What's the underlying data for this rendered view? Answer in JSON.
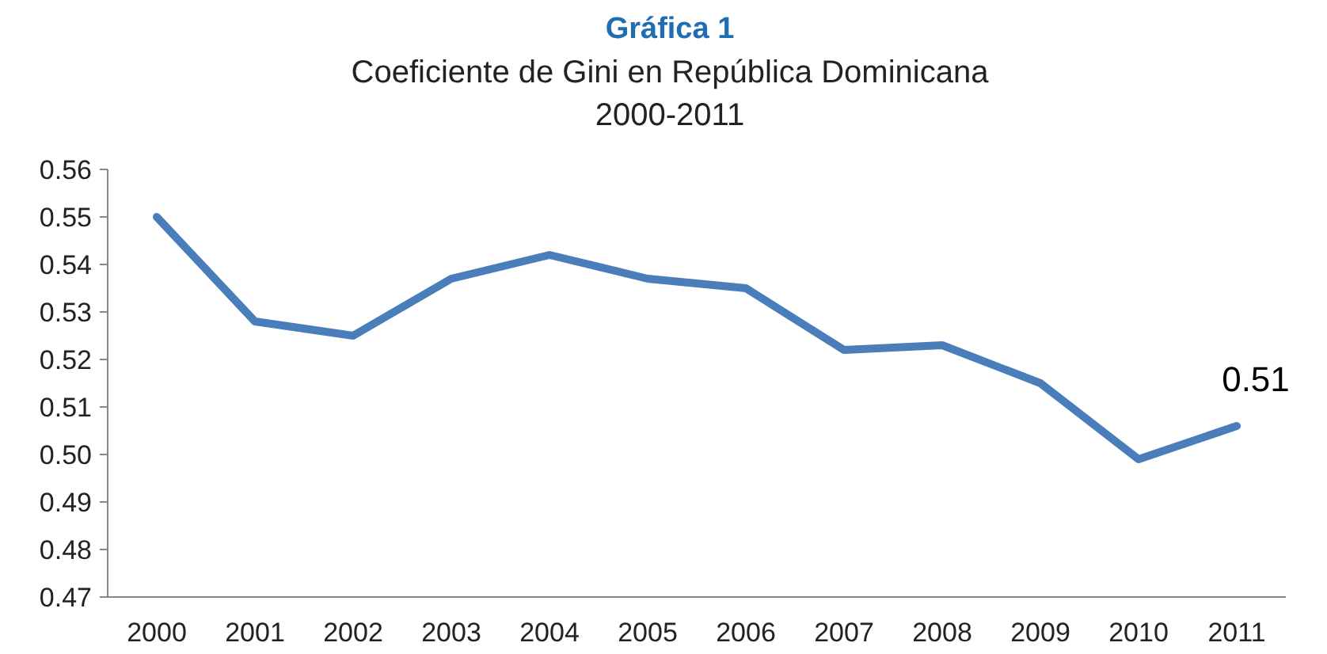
{
  "chart_data": {
    "type": "line",
    "title": "Gráfica 1",
    "subtitle": "Coeficiente de Gini en República Dominicana\n2000-2011",
    "categories": [
      "2000",
      "2001",
      "2002",
      "2003",
      "2004",
      "2005",
      "2006",
      "2007",
      "2008",
      "2009",
      "2010",
      "2011"
    ],
    "series": [
      {
        "color": "#4a7ebb",
        "values": [
          0.55,
          0.528,
          0.525,
          0.537,
          0.542,
          0.537,
          0.535,
          0.522,
          0.523,
          0.515,
          0.499,
          0.506
        ]
      }
    ],
    "ylim": [
      0.47,
      0.56
    ],
    "yticks": [
      {
        "value": 0.47,
        "label": "0.47"
      },
      {
        "value": 0.48,
        "label": "0.48"
      },
      {
        "value": 0.49,
        "label": "0.49"
      },
      {
        "value": 0.5,
        "label": "0.50"
      },
      {
        "value": 0.51,
        "label": "0.51"
      },
      {
        "value": 0.52,
        "label": "0.52"
      },
      {
        "value": 0.53,
        "label": "0.53"
      },
      {
        "value": 0.54,
        "label": "0.54"
      },
      {
        "value": 0.55,
        "label": "0.55"
      },
      {
        "value": 0.56,
        "label": "0.56"
      }
    ],
    "annotations": [
      {
        "text": "0.51",
        "x": "2011",
        "y": 0.506
      }
    ],
    "grid": false,
    "marker": "none",
    "line_style": "solid"
  }
}
